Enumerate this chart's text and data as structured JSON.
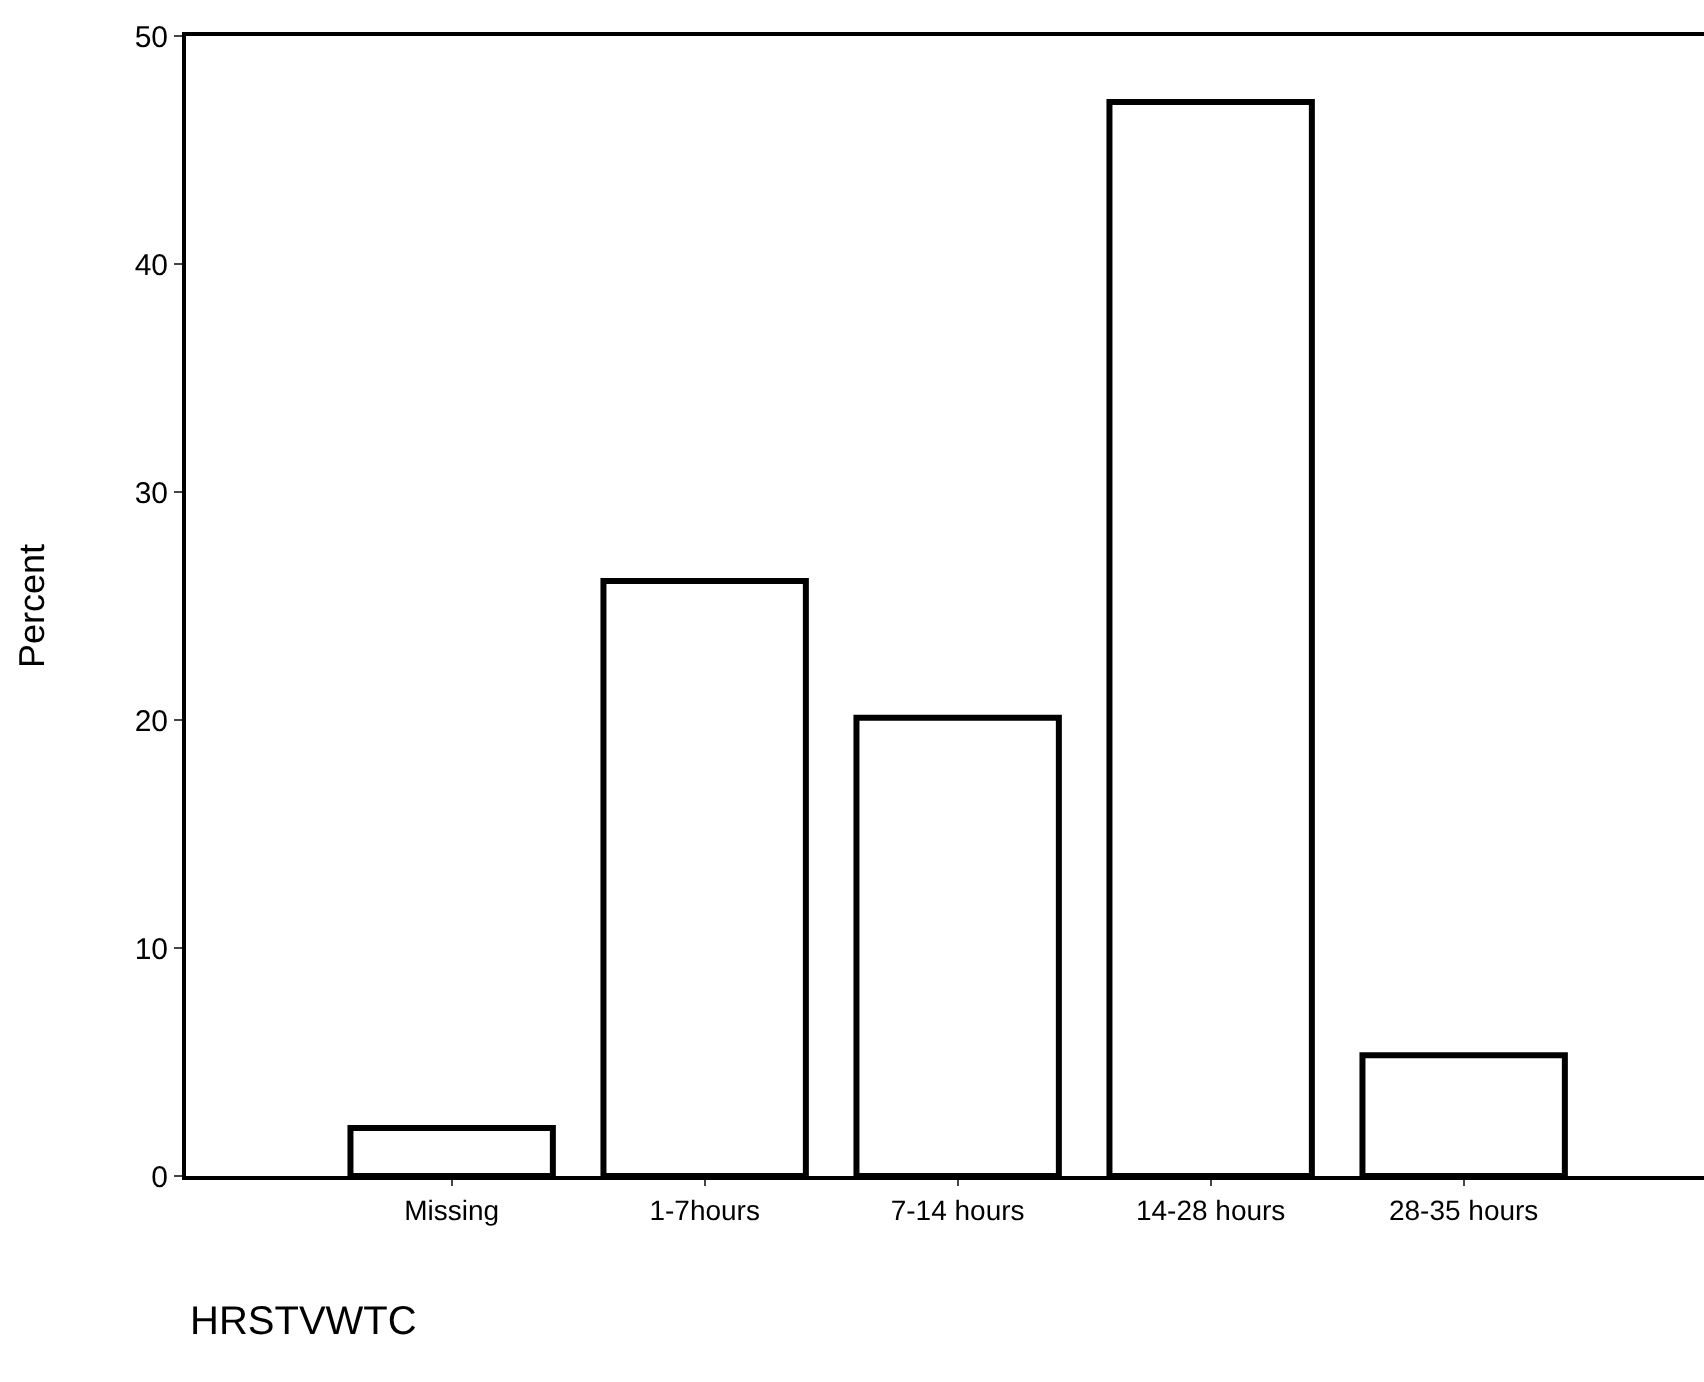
{
  "chart_data": {
    "type": "bar",
    "categories": [
      "Missing",
      "1-7hours",
      "7-14 hours",
      "14-28 hours",
      "28-35 hours"
    ],
    "values": [
      2.1,
      26.1,
      20.1,
      47.1,
      5.3
    ],
    "color": "#ffffff",
    "xlabel": "HRSTVWTC",
    "ylabel": "Percent",
    "ylim": [
      0,
      50
    ],
    "yticks": [
      0,
      10,
      20,
      30,
      40,
      50
    ],
    "legend": false
  }
}
